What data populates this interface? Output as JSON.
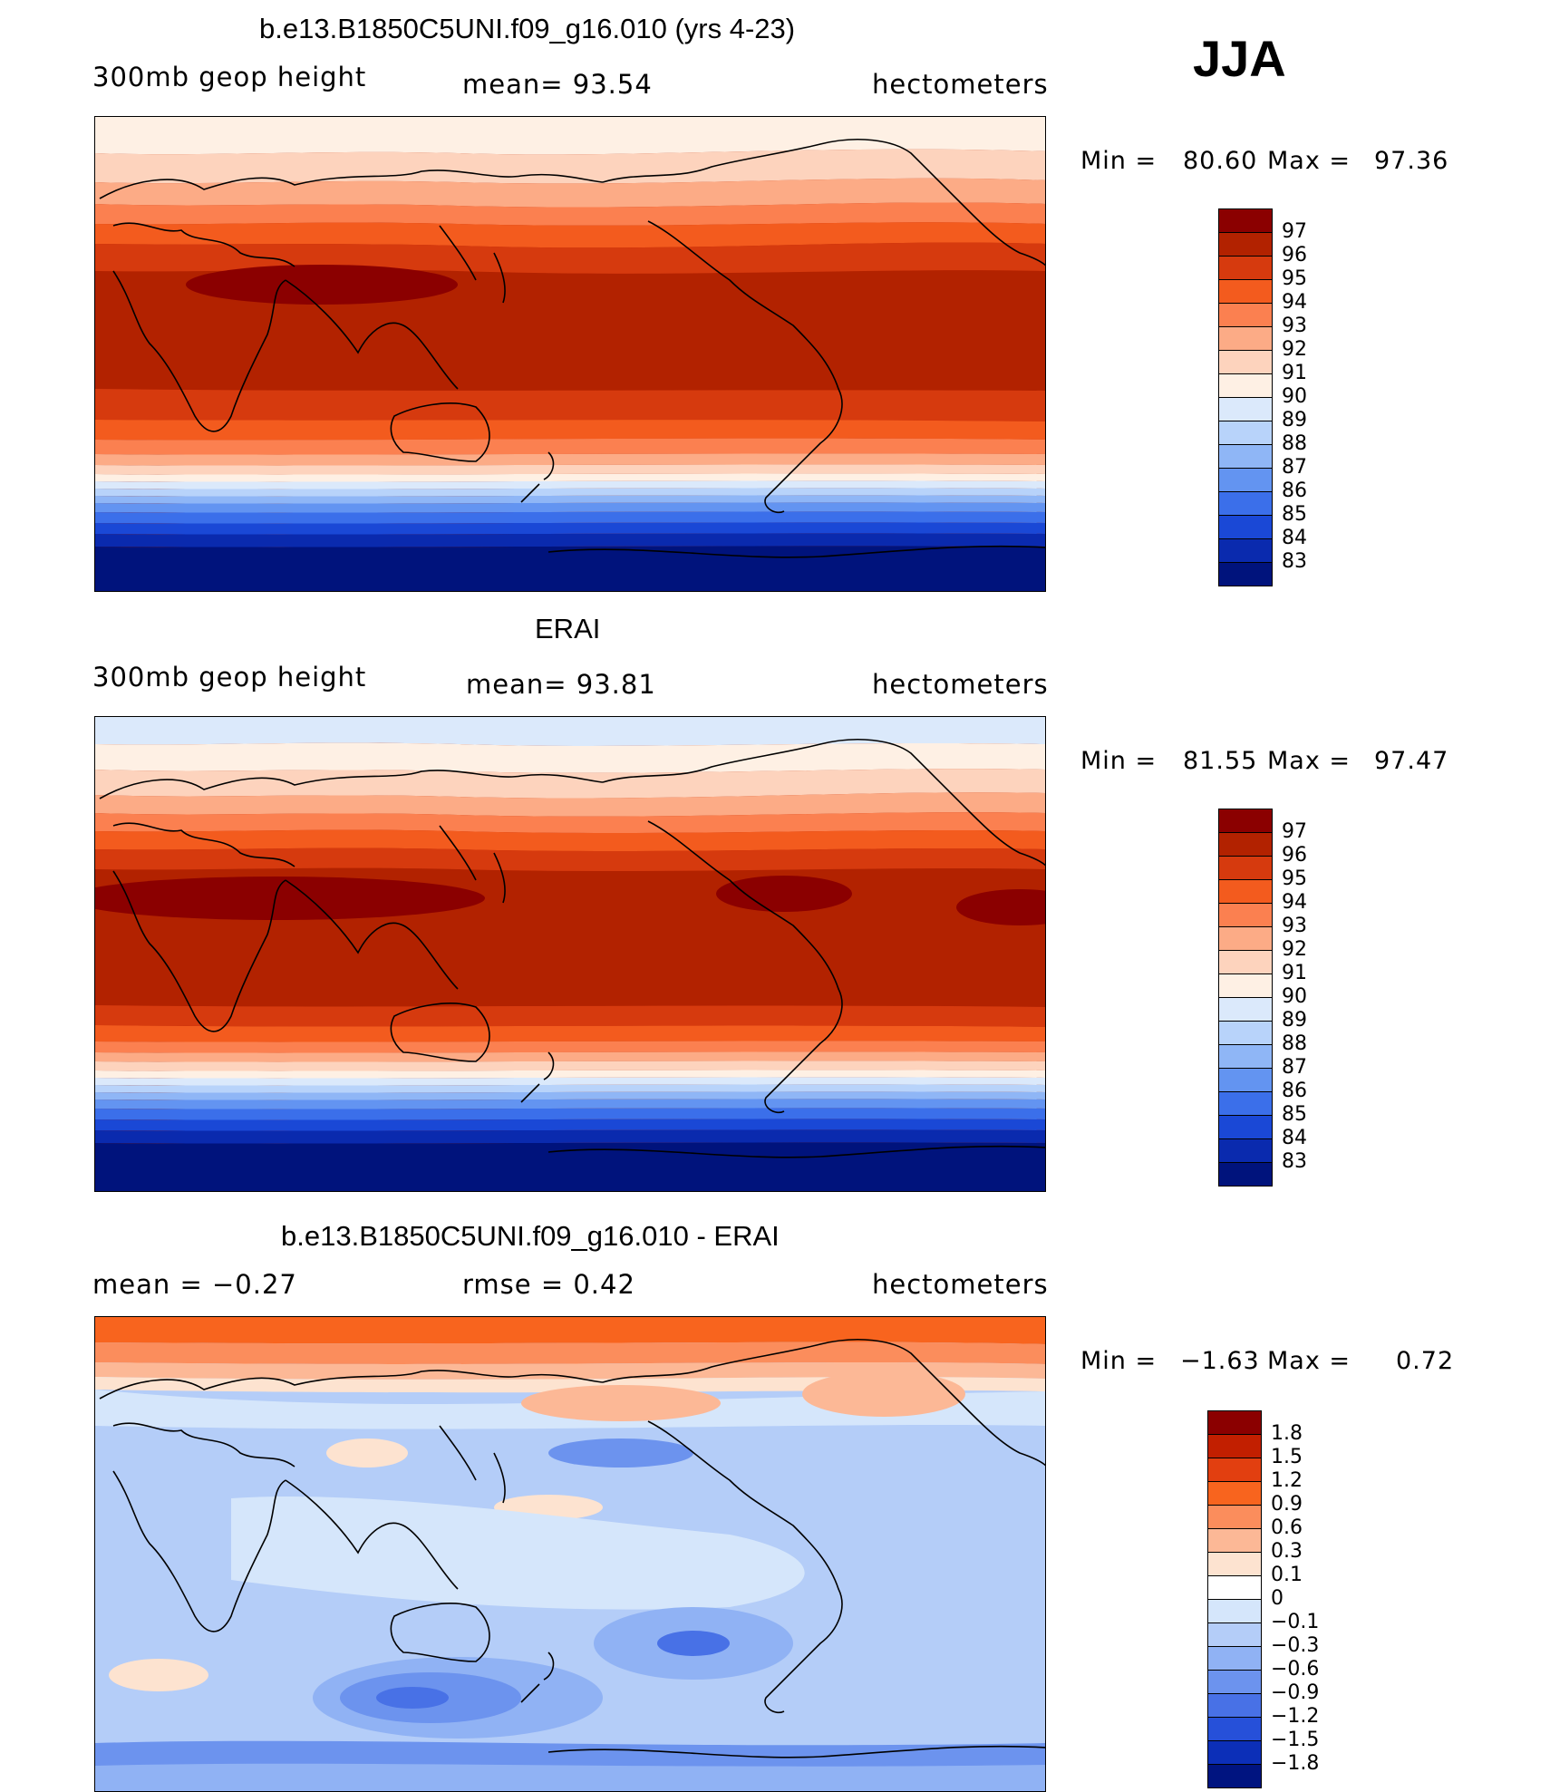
{
  "season": "JJA",
  "panels": [
    {
      "id": "model",
      "title": "b.e13.B1850C5UNI.f09_g16.010 (yrs 4-23)",
      "left_label": "300mb  geop  height",
      "center_label": "mean=   93.54",
      "units": "hectometers",
      "min_label": "Min  =",
      "min_value": "80.60",
      "max_label": "Max  =",
      "max_value": "97.36",
      "levels": [
        "97",
        "96",
        "95",
        "94",
        "93",
        "92",
        "91",
        "90",
        "89",
        "88",
        "87",
        "86",
        "85",
        "84",
        "83"
      ]
    },
    {
      "id": "obs",
      "title": "ERAI",
      "left_label": "300mb  geop  height",
      "center_label": "mean=   93.81",
      "units": "hectometers",
      "min_label": "Min  =",
      "min_value": "81.55",
      "max_label": "Max  =",
      "max_value": "97.47",
      "levels": [
        "97",
        "96",
        "95",
        "94",
        "93",
        "92",
        "91",
        "90",
        "89",
        "88",
        "87",
        "86",
        "85",
        "84",
        "83"
      ]
    },
    {
      "id": "diff",
      "title": "b.e13.B1850C5UNI.f09_g16.010 - ERAI",
      "left_label": "mean  =    −0.27",
      "center_label": "rmse  =     0.42",
      "units": "hectometers",
      "min_label": "Min  =",
      "min_value": "−1.63",
      "max_label": "Max  =",
      "max_value": "0.72",
      "levels": [
        "1.8",
        "1.5",
        "1.2",
        "0.9",
        "0.6",
        "0.3",
        "0.1",
        "0",
        "−0.1",
        "−0.3",
        "−0.6",
        "−0.9",
        "−1.2",
        "−1.5",
        "−1.8"
      ]
    }
  ],
  "colors": {
    "seq": [
      "#8b0000",
      "#b22200",
      "#d63a0e",
      "#f35b1e",
      "#fb8050",
      "#fcab86",
      "#fdd3bd",
      "#fef0e4",
      "#dbe9fb",
      "#b8d3fa",
      "#8fb6f6",
      "#6394f1",
      "#3b6fea",
      "#1a48d6",
      "#0a2aae",
      "#00137c"
    ],
    "diff": [
      "#8b0000",
      "#c21f00",
      "#e23f10",
      "#f8641e",
      "#fb8d5c",
      "#fcb896",
      "#fde3d0",
      "#ffffff",
      "#d5e6fb",
      "#b4cdf8",
      "#90b2f4",
      "#6c93ee",
      "#4871e6",
      "#2650d9",
      "#0c2fb8",
      "#001480"
    ]
  }
}
